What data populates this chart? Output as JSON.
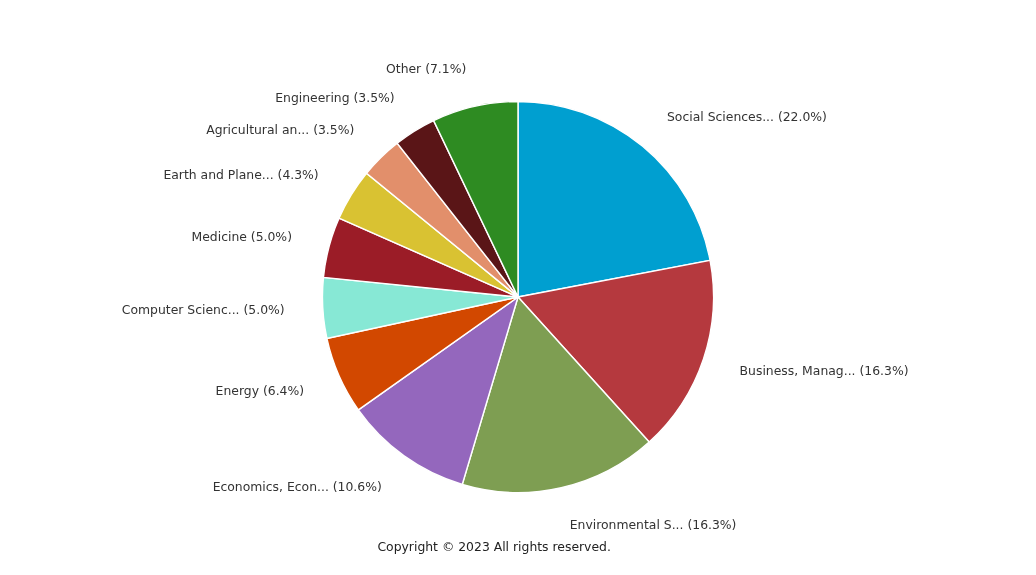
{
  "chart_data": {
    "type": "pie",
    "categories": [
      "Social Sciences... (22.0%)",
      "Business, Manag... (16.3%)",
      "Environmental S... (16.3%)",
      "Economics, Econ... (10.6%)",
      "Energy (6.4%)",
      "Computer Scienc... (5.0%)",
      "Medicine (5.0%)",
      "Earth and Plane... (4.3%)",
      "Agricultural an... (3.5%)",
      "Engineering (3.5%)",
      "Other (7.1%)"
    ],
    "values": [
      22.0,
      16.3,
      16.3,
      10.6,
      6.4,
      5.0,
      5.0,
      4.3,
      3.5,
      3.5,
      7.1
    ],
    "colors": [
      "#009fd0",
      "#b5393e",
      "#7e9e52",
      "#9467bd",
      "#d24800",
      "#87e8d5",
      "#9b1c27",
      "#d9c232",
      "#e28f6b",
      "#5a1517",
      "#2e8b22"
    ],
    "annotations": [
      "Copyright © 2023 All rights reserved."
    ]
  }
}
